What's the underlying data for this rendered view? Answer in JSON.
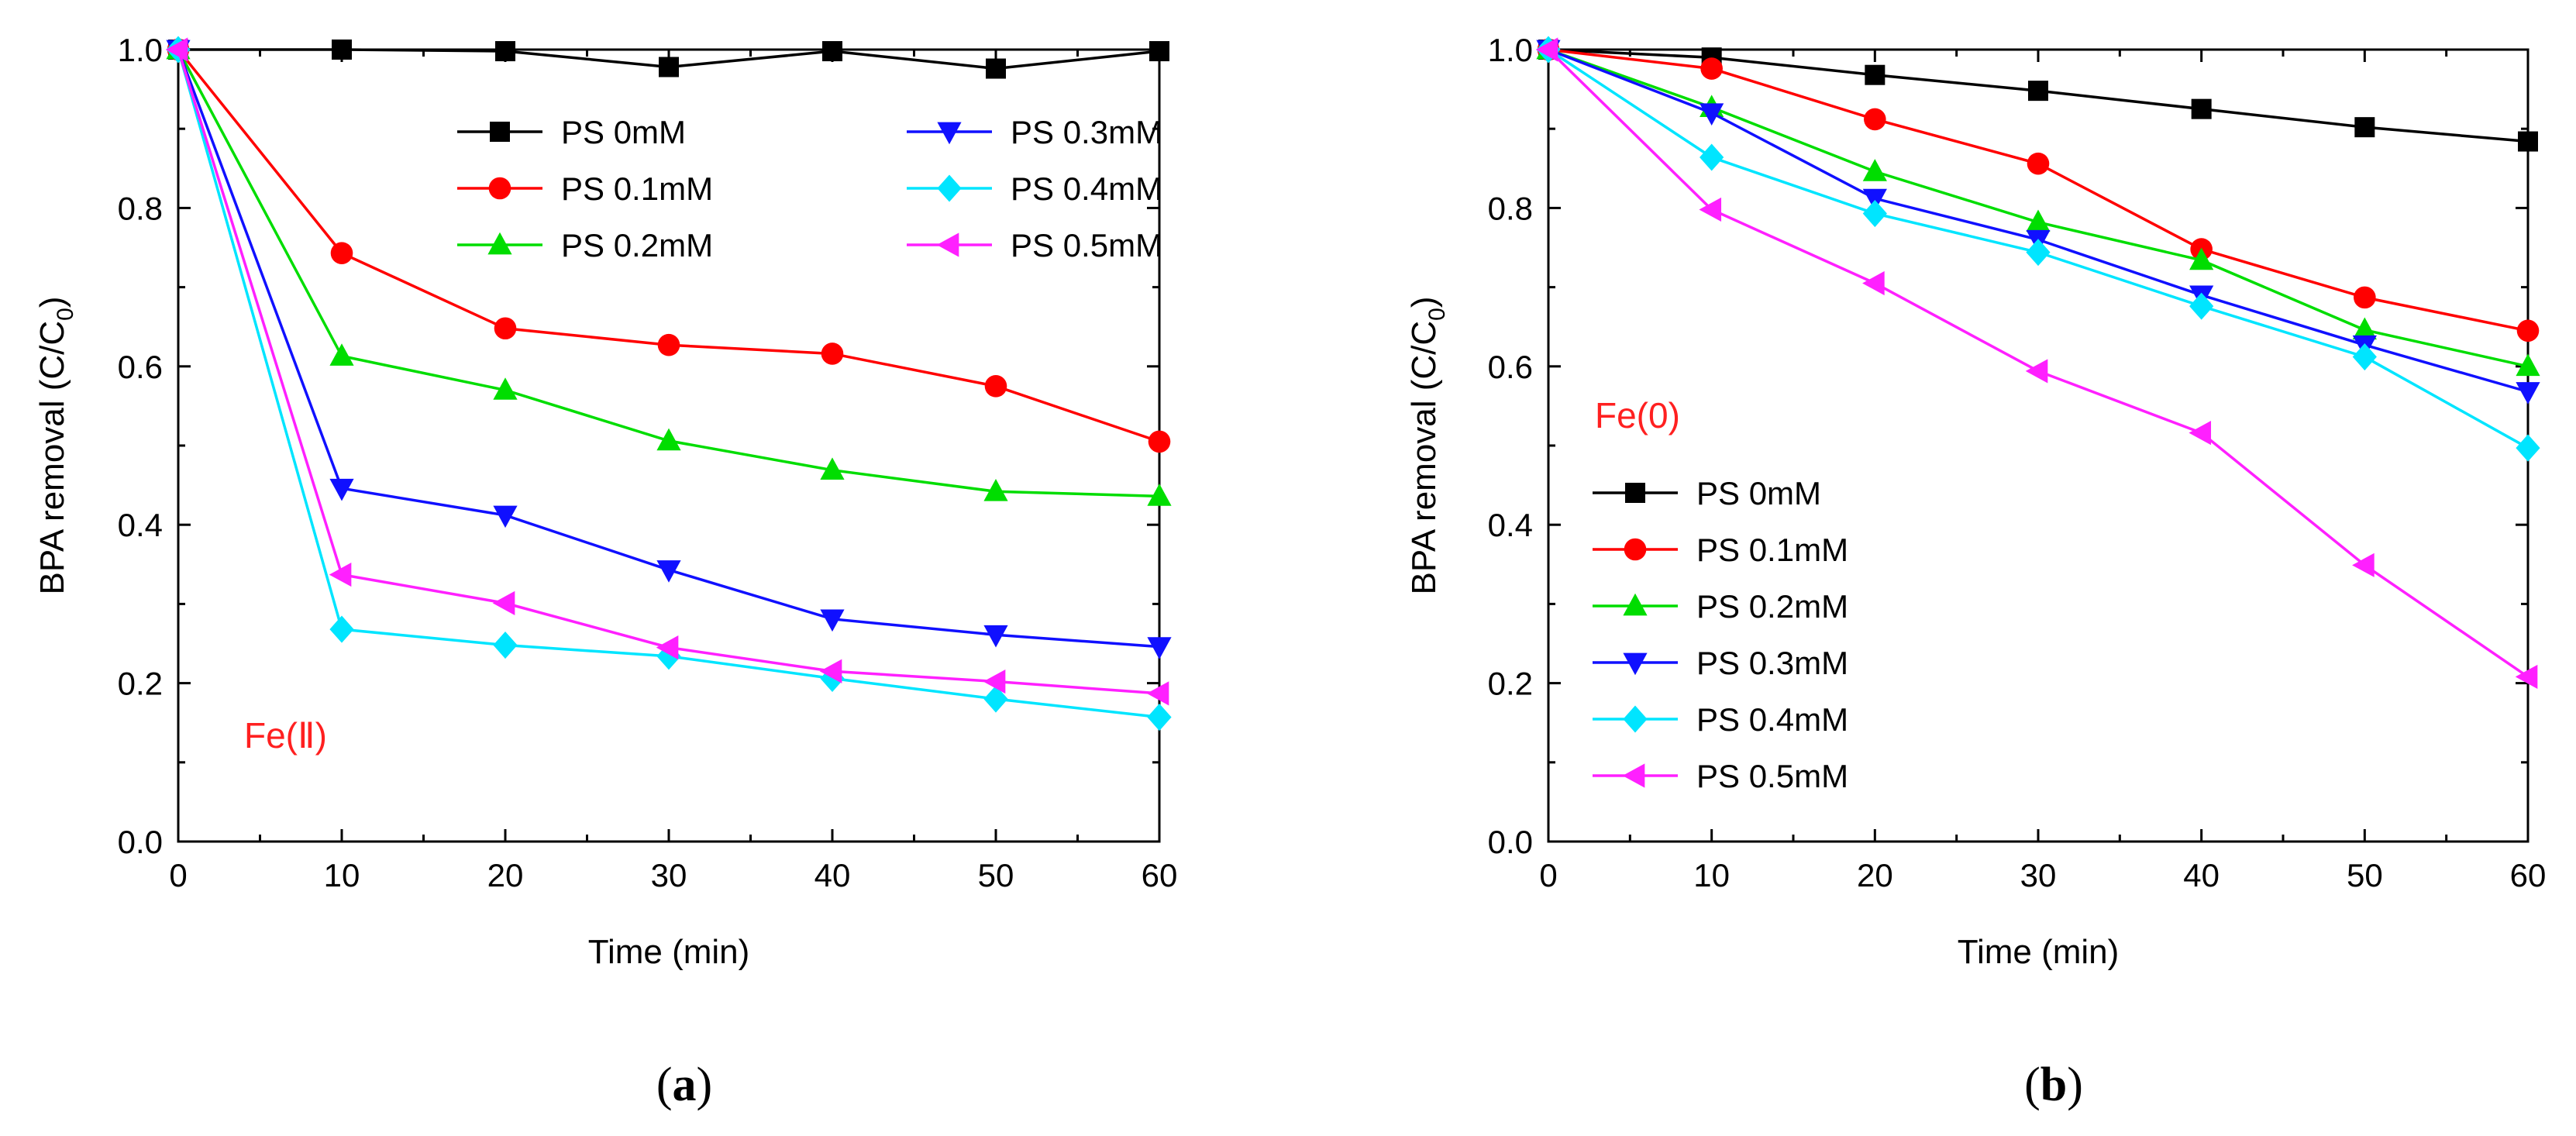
{
  "chart_data": [
    {
      "type": "line",
      "panel_label": "a",
      "annotation": "Fe(Ⅱ)",
      "annotation_color": "#ff2020",
      "xlabel": "Time (min)",
      "ylabel_main": "BPA removal (C/C",
      "ylabel_sub": "0",
      "ylabel_end": ")",
      "xlim": [
        0,
        60
      ],
      "ylim": [
        0.0,
        1.0
      ],
      "xticks": [
        "0",
        "10",
        "20",
        "30",
        "40",
        "50",
        "60"
      ],
      "yticks": [
        "0.0",
        "0.2",
        "0.4",
        "0.6",
        "0.8",
        "1.0"
      ],
      "legend_position": "top-right, two columns",
      "x": [
        0,
        10,
        20,
        30,
        40,
        50,
        60
      ],
      "series": [
        {
          "name": "PS 0mM",
          "color": "#000000",
          "marker": "square",
          "values": [
            1.0,
            1.0,
            0.998,
            0.978,
            0.998,
            0.976,
            0.998
          ]
        },
        {
          "name": "PS 0.1mM",
          "color": "#ff0000",
          "marker": "circle",
          "values": [
            1.0,
            0.743,
            0.648,
            0.627,
            0.616,
            0.575,
            0.505
          ]
        },
        {
          "name": "PS 0.2mM",
          "color": "#00dd00",
          "marker": "triangle-up",
          "values": [
            1.0,
            0.613,
            0.57,
            0.506,
            0.469,
            0.442,
            0.436
          ]
        },
        {
          "name": "PS 0.3mM",
          "color": "#1010ff",
          "marker": "triangle-down",
          "values": [
            1.0,
            0.446,
            0.412,
            0.343,
            0.281,
            0.261,
            0.246
          ]
        },
        {
          "name": "PS 0.4mM",
          "color": "#00e5ff",
          "marker": "diamond",
          "values": [
            1.0,
            0.268,
            0.248,
            0.234,
            0.206,
            0.18,
            0.157
          ]
        },
        {
          "name": "PS 0.5mM",
          "color": "#ff20ff",
          "marker": "triangle-left",
          "values": [
            1.0,
            0.337,
            0.301,
            0.245,
            0.215,
            0.202,
            0.187
          ]
        }
      ]
    },
    {
      "type": "line",
      "panel_label": "b",
      "annotation": "Fe(0)",
      "annotation_color": "#ff2020",
      "xlabel": "Time (min)",
      "ylabel_main": "BPA removal (C/C",
      "ylabel_sub": "0",
      "ylabel_end": ")",
      "xlim": [
        0,
        60
      ],
      "ylim": [
        0.0,
        1.0
      ],
      "xticks": [
        "0",
        "10",
        "20",
        "30",
        "40",
        "50",
        "60"
      ],
      "yticks": [
        "0.0",
        "0.2",
        "0.4",
        "0.6",
        "0.8",
        "1.0"
      ],
      "legend_position": "middle-left, one column",
      "x": [
        0,
        10,
        20,
        30,
        40,
        50,
        60
      ],
      "series": [
        {
          "name": "PS 0mM",
          "color": "#000000",
          "marker": "square",
          "values": [
            1.0,
            0.99,
            0.968,
            0.948,
            0.925,
            0.902,
            0.884
          ]
        },
        {
          "name": "PS 0.1mM",
          "color": "#ff0000",
          "marker": "circle",
          "values": [
            1.0,
            0.976,
            0.912,
            0.856,
            0.748,
            0.687,
            0.645
          ]
        },
        {
          "name": "PS 0.2mM",
          "color": "#00dd00",
          "marker": "triangle-up",
          "values": [
            1.0,
            0.927,
            0.846,
            0.782,
            0.734,
            0.646,
            0.6
          ]
        },
        {
          "name": "PS 0.3mM",
          "color": "#1010ff",
          "marker": "triangle-down",
          "values": [
            1.0,
            0.92,
            0.812,
            0.76,
            0.69,
            0.627,
            0.568
          ]
        },
        {
          "name": "PS 0.4mM",
          "color": "#00e5ff",
          "marker": "diamond",
          "values": [
            1.0,
            0.864,
            0.793,
            0.744,
            0.676,
            0.612,
            0.497
          ]
        },
        {
          "name": "PS 0.5mM",
          "color": "#ff20ff",
          "marker": "triangle-left",
          "values": [
            1.0,
            0.798,
            0.705,
            0.594,
            0.516,
            0.349,
            0.208
          ]
        }
      ]
    }
  ]
}
